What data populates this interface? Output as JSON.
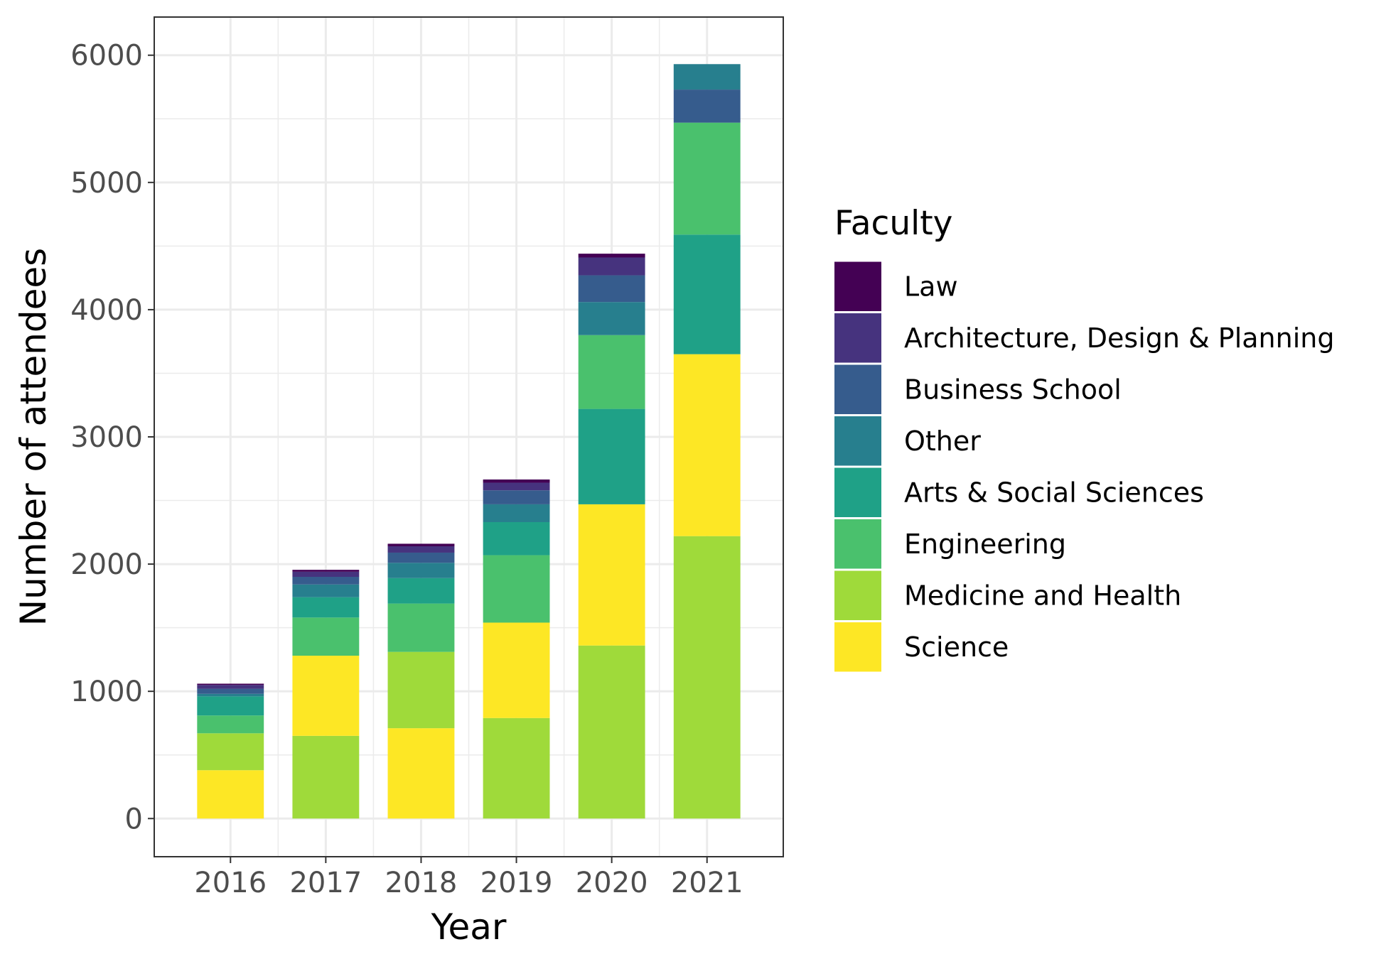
{
  "chart_data": {
    "type": "bar",
    "stacked": true,
    "categories": [
      "2016",
      "2017",
      "2018",
      "2019",
      "2020",
      "2021"
    ],
    "xlabel": "Year",
    "ylabel": "Number of attendees",
    "ylim": [
      -300,
      6300
    ],
    "yticks": [
      "0",
      "1000",
      "2000",
      "3000",
      "4000",
      "5000",
      "6000"
    ],
    "grid": true,
    "legend": {
      "title": "Faculty",
      "position": "right",
      "order": [
        "Law",
        "Architecture, Design & Planning",
        "Business School",
        "Other",
        "Arts & Social Sciences",
        "Engineering",
        "Medicine and Health",
        "Science"
      ]
    },
    "series": [
      {
        "name": "Law",
        "color": "#440154",
        "values": [
          10,
          15,
          20,
          25,
          30,
          0
        ]
      },
      {
        "name": "Architecture, Design & Planning",
        "color": "#46337E",
        "values": [
          30,
          40,
          50,
          60,
          140,
          0
        ]
      },
      {
        "name": "Business School",
        "color": "#365C8D",
        "values": [
          40,
          60,
          80,
          110,
          210,
          260
        ]
      },
      {
        "name": "Other",
        "color": "#277F8E",
        "values": [
          20,
          100,
          120,
          140,
          260,
          200
        ]
      },
      {
        "name": "Arts & Social Sciences",
        "color": "#1FA187",
        "values": [
          150,
          160,
          200,
          260,
          750,
          940
        ]
      },
      {
        "name": "Engineering",
        "color": "#4AC16D",
        "values": [
          140,
          300,
          380,
          530,
          580,
          880
        ]
      },
      {
        "name": "Medicine and Health",
        "color": "#9FDA3A",
        "values": [
          290,
          650,
          600,
          790,
          1360,
          2220
        ]
      },
      {
        "name": "Science",
        "color": "#FDE725",
        "values": [
          380,
          630,
          710,
          750,
          1110,
          1430
        ]
      }
    ],
    "stack_order_bottom_to_top": {
      "2016": [
        "Science",
        "Medicine and Health",
        "Engineering",
        "Arts & Social Sciences",
        "Other",
        "Business School",
        "Architecture, Design & Planning",
        "Law"
      ],
      "2017": [
        "Medicine and Health",
        "Science",
        "Engineering",
        "Arts & Social Sciences",
        "Other",
        "Business School",
        "Architecture, Design & Planning",
        "Law"
      ],
      "2018": [
        "Science",
        "Medicine and Health",
        "Engineering",
        "Arts & Social Sciences",
        "Other",
        "Business School",
        "Architecture, Design & Planning",
        "Law"
      ],
      "2019": [
        "Medicine and Health",
        "Science",
        "Engineering",
        "Arts & Social Sciences",
        "Other",
        "Business School",
        "Architecture, Design & Planning",
        "Law"
      ],
      "2020": [
        "Medicine and Health",
        "Science",
        "Arts & Social Sciences",
        "Engineering",
        "Other",
        "Business School",
        "Architecture, Design & Planning",
        "Law"
      ],
      "2021": [
        "Medicine and Health",
        "Science",
        "Arts & Social Sciences",
        "Engineering",
        "Business School",
        "Other"
      ]
    }
  }
}
